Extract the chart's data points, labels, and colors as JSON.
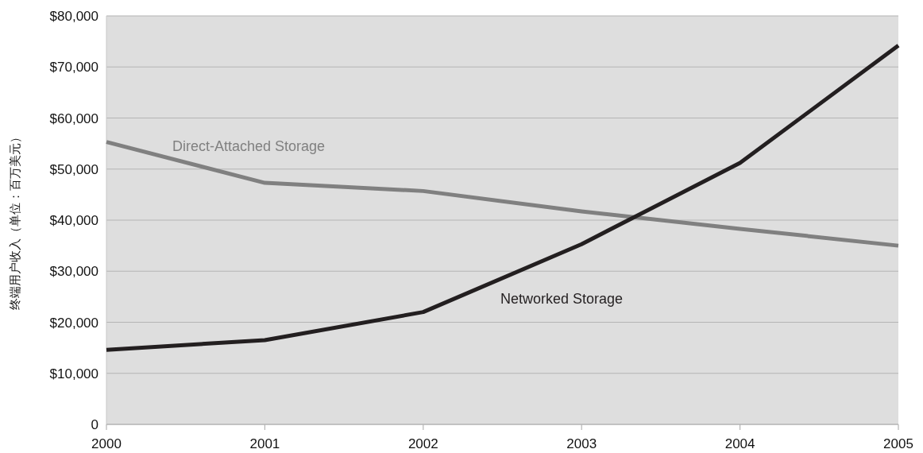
{
  "chart_data": {
    "type": "line",
    "ylabel": "终端用户收入（单位：百万美元）",
    "x": [
      2000,
      2001,
      2002,
      2003,
      2004,
      2005
    ],
    "series": [
      {
        "name": "Direct-Attached Storage",
        "color": "#808080",
        "values": [
          55300,
          47300,
          45700,
          41700,
          38300,
          35000
        ]
      },
      {
        "name": "Networked Storage",
        "color": "#231f20",
        "values": [
          14600,
          16500,
          22000,
          35300,
          51200,
          74200
        ]
      }
    ],
    "xlim": [
      2000,
      2005
    ],
    "xticks": [
      2000,
      2001,
      2002,
      2003,
      2004,
      2005
    ],
    "ylim": [
      0,
      80000
    ],
    "yticks": [
      0,
      {
        "value": 10000,
        "label": "$10,000"
      },
      {
        "value": 20000,
        "label": "$20,000"
      },
      {
        "value": 30000,
        "label": "$30,000"
      },
      {
        "value": 40000,
        "label": "$40,000"
      },
      {
        "value": 50000,
        "label": "$50,000"
      },
      {
        "value": 60000,
        "label": "$60,000"
      },
      {
        "value": 70000,
        "label": "$70,000"
      },
      {
        "value": 80000,
        "label": "$80,000"
      }
    ],
    "grid": "y",
    "marker": "none",
    "line_style": "solid"
  }
}
